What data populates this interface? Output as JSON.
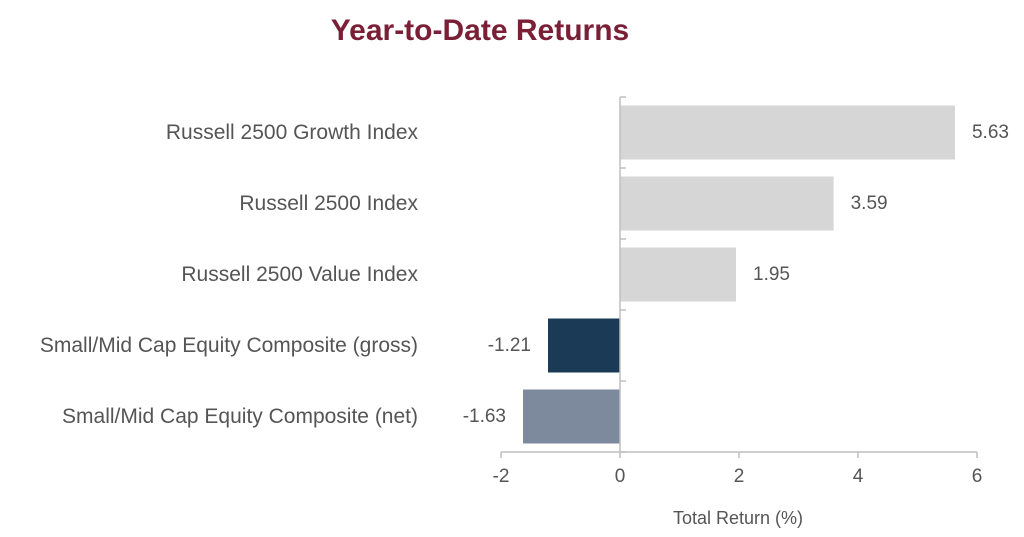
{
  "chart_data": {
    "type": "bar",
    "orientation": "horizontal",
    "title": "Year-to-Date Returns",
    "xlabel": "Total Return (%)",
    "ylabel": "",
    "categories": [
      "Russell 2500 Growth Index",
      "Russell 2500 Index",
      "Russell 2500 Value Index",
      "Small/Mid Cap Equity Composite (gross)",
      "Small/Mid Cap Equity Composite (net)"
    ],
    "values": [
      5.63,
      3.59,
      1.95,
      -1.21,
      -1.63
    ],
    "value_labels": [
      "5.63",
      "3.59",
      "1.95",
      "-1.21",
      "-1.63"
    ],
    "xlim": [
      -2,
      6
    ],
    "xticks": [
      -2,
      0,
      2,
      4,
      6
    ],
    "xtick_labels": [
      "-2",
      "0",
      "2",
      "4",
      "6"
    ],
    "bar_colors": [
      "#d6d6d6",
      "#d6d6d6",
      "#d6d6d6",
      "#1a3a55",
      "#7d8a9d"
    ],
    "grid": false,
    "legend": "none"
  },
  "colors": {
    "title": "#7a1f35",
    "text": "#555555",
    "axis": "#bfbfbf"
  }
}
